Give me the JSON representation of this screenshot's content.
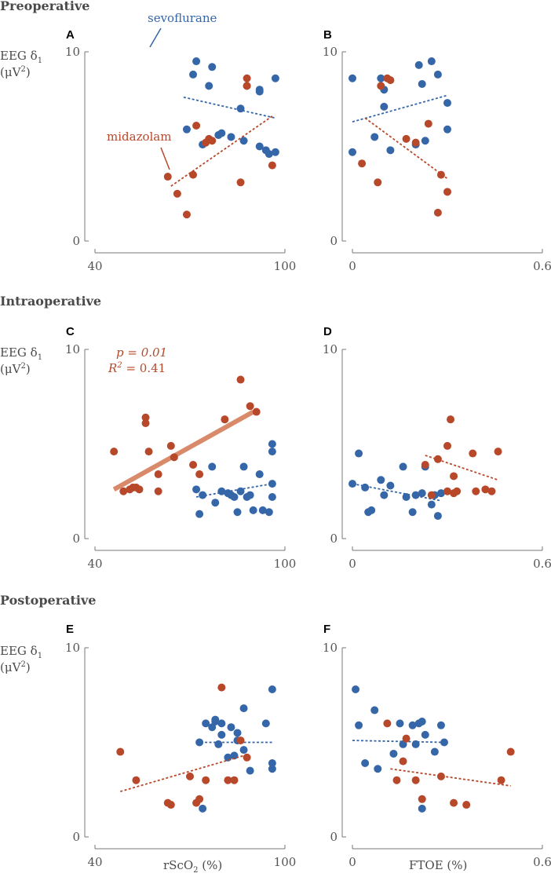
{
  "colors": {
    "sevoflurane": "#3566a8",
    "midazolam": "#b8482a",
    "regression_mid_solid": "#d98a6a",
    "axis": "#777777",
    "text": "#4a4a4a"
  },
  "sections": [
    {
      "title": "Preoperative"
    },
    {
      "title": "Intraoperative"
    },
    {
      "title": "Postoperative"
    }
  ],
  "ylabel": {
    "line1": "EEG δ",
    "sub": "1",
    "line2": "(μV",
    "sup": "2",
    "line2_end": ")"
  },
  "xlabels": {
    "left": "rScO",
    "left_sub": "2",
    "left_end": " (%)",
    "right": "FTOE (%)"
  },
  "legend": {
    "sevoflurane": "sevoflurane",
    "midazolam": "midazolam"
  },
  "stats_C": {
    "p": "p = 0.01",
    "r2_prefix": "R",
    "r2_sup": "2",
    "r2_suffix": " = 0.41"
  },
  "chart_data": [
    {
      "id": "A",
      "type": "scatter",
      "section": "Preoperative",
      "xlabel": "rScO2 (%)",
      "ylabel": "EEG δ1 (μV2)",
      "xlim": [
        40,
        100
      ],
      "ylim": [
        0,
        10
      ],
      "xticks": [
        "40",
        "100"
      ],
      "yticks": [
        "0",
        "10"
      ],
      "series": [
        {
          "name": "sevoflurane",
          "x": [
            69,
            71,
            72,
            74,
            76,
            77,
            79,
            80,
            83,
            86,
            87,
            88,
            92,
            92,
            92,
            94,
            95,
            97,
            97
          ],
          "y": [
            5.9,
            8.8,
            9.5,
            5.1,
            8.2,
            9.2,
            5.6,
            5.7,
            5.5,
            7.0,
            5.3,
            8.2,
            8.0,
            7.9,
            5.0,
            4.8,
            4.6,
            8.6,
            4.7
          ],
          "trend": {
            "x": [
              68,
              97
            ],
            "y": [
              7.6,
              6.5
            ],
            "style": "dashed"
          }
        },
        {
          "name": "midazolam",
          "x": [
            63,
            66,
            69,
            71,
            72,
            75,
            76,
            77,
            86,
            88,
            88,
            96
          ],
          "y": [
            3.4,
            2.5,
            1.4,
            3.5,
            6.1,
            5.2,
            5.4,
            5.3,
            3.1,
            8.6,
            8.2,
            4.0
          ],
          "trend": {
            "x": [
              64,
              96
            ],
            "y": [
              2.9,
              6.6
            ],
            "style": "dashed"
          }
        }
      ]
    },
    {
      "id": "B",
      "type": "scatter",
      "section": "Preoperative",
      "xlabel": "FTOE (%)",
      "ylabel": "EEG δ1 (μV2)",
      "xlim": [
        0,
        0.6
      ],
      "ylim": [
        0,
        10
      ],
      "xticks": [
        "0",
        "0.6"
      ],
      "yticks": [
        "0",
        "10"
      ],
      "series": [
        {
          "name": "sevoflurane",
          "x": [
            0.0,
            0.0,
            0.07,
            0.09,
            0.1,
            0.1,
            0.12,
            0.2,
            0.21,
            0.22,
            0.23,
            0.25,
            0.27,
            0.3,
            0.3
          ],
          "y": [
            8.6,
            4.7,
            5.5,
            8.6,
            8.0,
            7.1,
            4.8,
            5.1,
            9.3,
            8.3,
            5.3,
            9.5,
            8.8,
            7.3,
            5.9
          ],
          "trend": {
            "x": [
              0.0,
              0.3
            ],
            "y": [
              6.3,
              7.7
            ],
            "style": "dashed"
          }
        },
        {
          "name": "midazolam",
          "x": [
            0.03,
            0.08,
            0.09,
            0.11,
            0.12,
            0.17,
            0.2,
            0.24,
            0.27,
            0.28,
            0.3
          ],
          "y": [
            4.1,
            3.1,
            8.2,
            8.6,
            8.5,
            5.4,
            5.2,
            6.2,
            1.5,
            3.5,
            2.6
          ],
          "trend": {
            "x": [
              0.04,
              0.3
            ],
            "y": [
              6.5,
              3.3
            ],
            "style": "dashed"
          }
        }
      ]
    },
    {
      "id": "C",
      "type": "scatter",
      "section": "Intraoperative",
      "xlabel": "rScO2 (%)",
      "ylabel": "EEG δ1 (μV2)",
      "xlim": [
        40,
        100
      ],
      "ylim": [
        0,
        10
      ],
      "xticks": [
        "40",
        "100"
      ],
      "yticks": [
        "0",
        "10"
      ],
      "series": [
        {
          "name": "sevoflurane",
          "x": [
            72,
            73,
            74,
            77,
            78,
            80,
            82,
            83,
            84,
            85,
            86,
            87,
            88,
            89,
            90,
            92,
            93,
            95,
            96,
            96,
            96,
            96
          ],
          "y": [
            2.6,
            1.3,
            2.3,
            3.8,
            1.9,
            2.5,
            2.4,
            2.3,
            2.2,
            1.4,
            2.5,
            3.8,
            2.2,
            2.3,
            1.5,
            3.4,
            1.5,
            1.4,
            2.9,
            2.2,
            4.6,
            5.0
          ],
          "trend": {
            "x": [
              72,
              96
            ],
            "y": [
              2.2,
              2.9
            ],
            "style": "dashed"
          }
        },
        {
          "name": "midazolam",
          "x": [
            46,
            49,
            51,
            52,
            53,
            54,
            56,
            56,
            57,
            60,
            60,
            64,
            65,
            71,
            73,
            81,
            86,
            89,
            91
          ],
          "y": [
            4.6,
            2.5,
            2.6,
            2.7,
            2.7,
            2.6,
            6.4,
            6.1,
            4.6,
            3.4,
            2.5,
            4.9,
            4.3,
            3.9,
            3.4,
            6.3,
            8.4,
            7.0,
            6.7
          ],
          "trend": {
            "x": [
              46,
              90
            ],
            "y": [
              2.6,
              6.7
            ],
            "style": "solid"
          }
        }
      ]
    },
    {
      "id": "D",
      "type": "scatter",
      "section": "Intraoperative",
      "xlabel": "FTOE (%)",
      "ylabel": "EEG δ1 (μV2)",
      "xlim": [
        0,
        0.6
      ],
      "ylim": [
        0,
        10
      ],
      "xticks": [
        "0",
        "0.6"
      ],
      "yticks": [
        "0",
        "10"
      ],
      "series": [
        {
          "name": "sevoflurane",
          "x": [
            0.0,
            0.02,
            0.04,
            0.05,
            0.06,
            0.09,
            0.1,
            0.12,
            0.16,
            0.17,
            0.19,
            0.2,
            0.22,
            0.23,
            0.25,
            0.26,
            0.27,
            0.28
          ],
          "y": [
            2.9,
            4.5,
            2.7,
            1.4,
            1.5,
            3.1,
            2.3,
            2.8,
            3.8,
            2.2,
            1.4,
            2.3,
            2.4,
            3.8,
            1.8,
            2.3,
            1.2,
            2.4
          ],
          "trend": {
            "x": [
              0.0,
              0.28
            ],
            "y": [
              2.9,
              2.0
            ],
            "style": "dashed"
          }
        },
        {
          "name": "midazolam",
          "x": [
            0.23,
            0.25,
            0.27,
            0.3,
            0.3,
            0.31,
            0.32,
            0.32,
            0.33,
            0.38,
            0.39,
            0.42,
            0.44,
            0.46
          ],
          "y": [
            3.9,
            2.3,
            4.2,
            4.9,
            2.5,
            6.3,
            3.3,
            2.4,
            2.5,
            4.5,
            2.5,
            2.6,
            2.5,
            4.6
          ],
          "trend": {
            "x": [
              0.23,
              0.46
            ],
            "y": [
              4.4,
              3.1
            ],
            "style": "dashed"
          }
        }
      ]
    },
    {
      "id": "E",
      "type": "scatter",
      "section": "Postoperative",
      "xlabel": "rScO2 (%)",
      "ylabel": "EEG δ1 (μV2)",
      "xlim": [
        40,
        100
      ],
      "ylim": [
        0,
        10
      ],
      "xticks": [
        "40",
        "100"
      ],
      "yticks": [
        "0",
        "10"
      ],
      "series": [
        {
          "name": "sevoflurane",
          "x": [
            73,
            74,
            75,
            77,
            78,
            78,
            79,
            80,
            80,
            82,
            83,
            84,
            85,
            85,
            87,
            87,
            89,
            94,
            96,
            96,
            96
          ],
          "y": [
            5.0,
            1.5,
            6.0,
            5.8,
            6.1,
            6.2,
            4.9,
            5.4,
            6.0,
            4.2,
            5.8,
            4.3,
            5.5,
            5.1,
            6.8,
            4.6,
            3.5,
            6.0,
            7.8,
            3.9,
            3.6
          ],
          "trend": {
            "x": [
              72,
              96
            ],
            "y": [
              5.0,
              5.0
            ],
            "style": "dashed"
          }
        },
        {
          "name": "midazolam",
          "x": [
            48,
            53,
            63,
            64,
            70,
            72,
            73,
            75,
            80,
            82,
            84,
            86,
            88
          ],
          "y": [
            4.5,
            3.0,
            1.8,
            1.7,
            3.2,
            1.8,
            2.0,
            3.0,
            7.9,
            3.0,
            3.0,
            5.1,
            4.2
          ],
          "trend": {
            "x": [
              48,
              87
            ],
            "y": [
              2.4,
              4.3
            ],
            "style": "dashed"
          }
        }
      ]
    },
    {
      "id": "F",
      "type": "scatter",
      "section": "Postoperative",
      "xlabel": "FTOE (%)",
      "ylabel": "EEG δ1 (μV2)",
      "xlim": [
        0,
        0.6
      ],
      "ylim": [
        0,
        10
      ],
      "xticks": [
        "0",
        "0.6"
      ],
      "yticks": [
        "0",
        "10"
      ],
      "series": [
        {
          "name": "sevoflurane",
          "x": [
            0.01,
            0.02,
            0.04,
            0.07,
            0.08,
            0.13,
            0.15,
            0.16,
            0.19,
            0.2,
            0.21,
            0.22,
            0.22,
            0.23,
            0.26,
            0.28,
            0.29
          ],
          "y": [
            7.8,
            5.9,
            3.9,
            6.7,
            3.6,
            4.4,
            6.0,
            4.9,
            5.9,
            4.9,
            6.0,
            6.1,
            1.5,
            5.4,
            4.5,
            5.9,
            5.0
          ],
          "trend": {
            "x": [
              0.0,
              0.29
            ],
            "y": [
              5.1,
              5.0
            ],
            "style": "dashed"
          }
        },
        {
          "name": "midazolam",
          "x": [
            0.11,
            0.14,
            0.16,
            0.17,
            0.2,
            0.22,
            0.28,
            0.32,
            0.36,
            0.47,
            0.5
          ],
          "y": [
            6.0,
            3.0,
            4.0,
            5.2,
            3.0,
            2.0,
            3.2,
            1.8,
            1.7,
            3.0,
            4.5
          ],
          "trend": {
            "x": [
              0.12,
              0.5
            ],
            "y": [
              3.6,
              2.7
            ],
            "style": "dashed"
          }
        }
      ]
    }
  ]
}
